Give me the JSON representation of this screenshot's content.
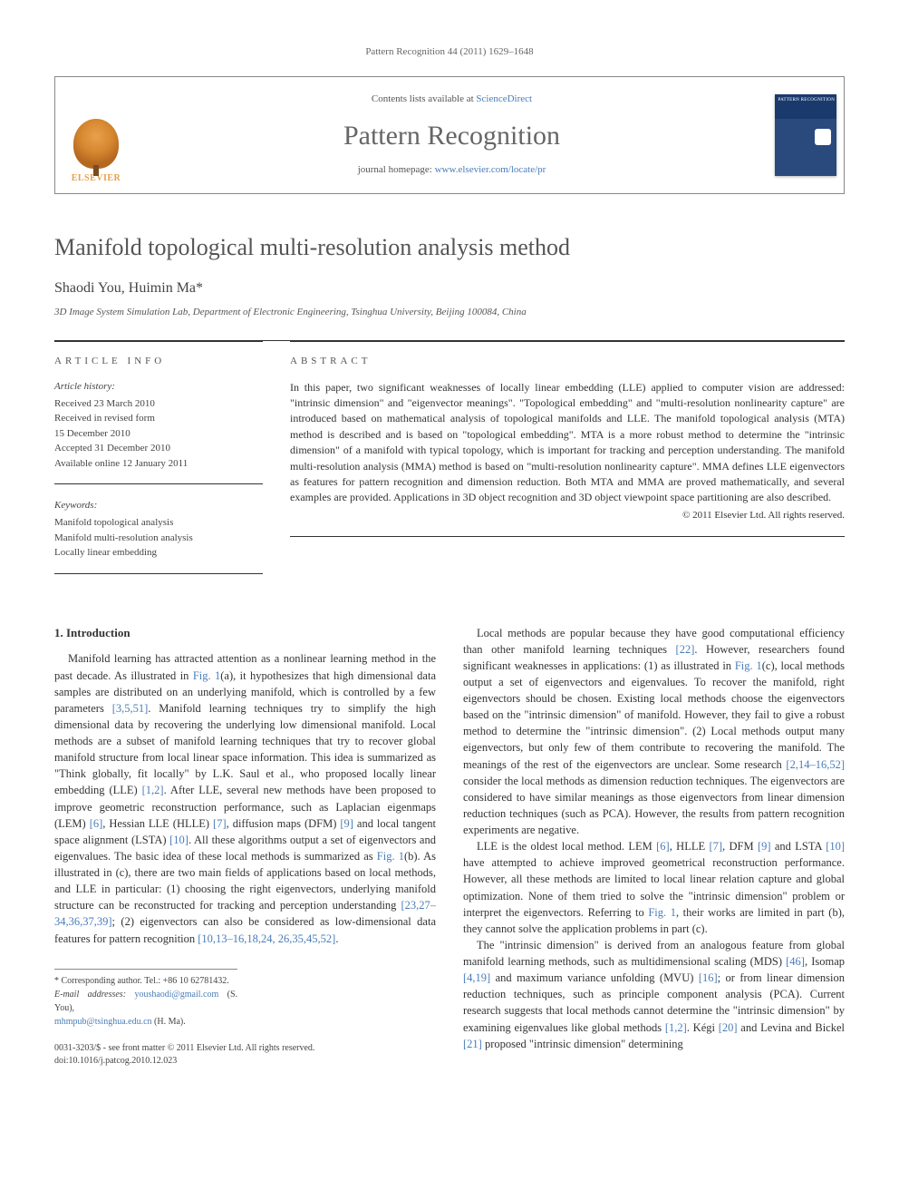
{
  "journal_ref": "Pattern Recognition 44 (2011) 1629–1648",
  "header": {
    "publisher": "ELSEVIER",
    "contents_prefix": "Contents lists available at ",
    "contents_link": "ScienceDirect",
    "journal_name": "Pattern Recognition",
    "homepage_prefix": "journal homepage: ",
    "homepage_url": "www.elsevier.com/locate/pr",
    "cover_label": "PATTERN RECOGNITION"
  },
  "article": {
    "title": "Manifold topological multi-resolution analysis method",
    "authors": "Shaodi You, Huimin Ma",
    "corresponding_marker": "*",
    "affiliation": "3D Image System Simulation Lab, Department of Electronic Engineering, Tsinghua University, Beijing 100084, China"
  },
  "info": {
    "section_label": "ARTICLE INFO",
    "history_heading": "Article history:",
    "history": {
      "received": "Received 23 March 2010",
      "revised1": "Received in revised form",
      "revised2": "15 December 2010",
      "accepted": "Accepted 31 December 2010",
      "online": "Available online 12 January 2011"
    },
    "keywords_heading": "Keywords:",
    "keywords": {
      "k1": "Manifold topological analysis",
      "k2": "Manifold multi-resolution analysis",
      "k3": "Locally linear embedding"
    }
  },
  "abstract": {
    "section_label": "ABSTRACT",
    "text": "In this paper, two significant weaknesses of locally linear embedding (LLE) applied to computer vision are addressed: \"intrinsic dimension\" and \"eigenvector meanings\". \"Topological embedding\" and \"multi-resolution nonlinearity capture\" are introduced based on mathematical analysis of topological manifolds and LLE. The manifold topological analysis (MTA) method is described and is based on \"topological embedding\". MTA is a more robust method to determine the \"intrinsic dimension\" of a manifold with typical topology, which is important for tracking and perception understanding. The manifold multi-resolution analysis (MMA) method is based on \"multi-resolution nonlinearity capture\". MMA defines LLE eigenvectors as features for pattern recognition and dimension reduction. Both MTA and MMA are proved mathematically, and several examples are provided. Applications in 3D object recognition and 3D object viewpoint space partitioning are also described.",
    "copyright": "© 2011 Elsevier Ltd. All rights reserved."
  },
  "body": {
    "heading1": "1. Introduction",
    "left_p1a": "Manifold learning has attracted attention as a nonlinear learning method in the past decade. As illustrated in ",
    "left_fig1a": "Fig. 1",
    "left_p1b": "(a), it hypothesizes that high dimensional data samples are distributed on an underlying manifold, which is controlled by a few parameters ",
    "left_ref1": "[3,5,51]",
    "left_p1c": ". Manifold learning techniques try to simplify the high dimensional data by recovering the underlying low dimensional manifold. Local methods are a subset of manifold learning techniques that try to recover global manifold structure from local linear space information. This idea is summarized as \"Think globally, fit locally\" by L.K. Saul et al., who proposed locally linear embedding (LLE) ",
    "left_ref2": "[1,2]",
    "left_p1d": ". After LLE, several new methods have been proposed to improve geometric reconstruction performance, such as Laplacian eigenmaps (LEM) ",
    "left_ref3": "[6]",
    "left_p1e": ", Hessian LLE (HLLE) ",
    "left_ref4": "[7]",
    "left_p1f": ", diffusion maps (DFM) ",
    "left_ref5": "[9]",
    "left_p1g": " and local tangent space alignment (LSTA) ",
    "left_ref6": "[10]",
    "left_p1h": ". All these algorithms output a set of eigenvectors and eigenvalues. The basic idea of these local methods is summarized as ",
    "left_fig1b": "Fig. 1",
    "left_p1i": "(b). As illustrated in ",
    "left_fig1c": "Fig. 1",
    "left_p1j": "(c), there are two main fields of applications based on local methods, and LLE in particular: (1) choosing the right eigenvectors, underlying manifold structure can be reconstructed for tracking and perception understanding ",
    "left_ref7": "[23,27–34,36,37,39]",
    "left_p1k": "; (2) eigenvectors can also be considered as low-dimensional data features for pattern recognition ",
    "left_ref8": "[10,13–16,18,24, 26,35,45,52]",
    "left_p1l": ".",
    "right_p1a": "Local methods are popular because they have good computational efficiency than other manifold learning techniques ",
    "right_ref1": "[22]",
    "right_p1b": ". However, researchers found significant weaknesses in applications: (1) as illustrated in ",
    "right_fig1": "Fig. 1",
    "right_p1c": "(c), local methods output a set of eigenvectors and eigenvalues. To recover the manifold, right eigenvectors should be chosen. Existing local methods choose the eigenvectors based on the \"intrinsic dimension\" of manifold. However, they fail to give a robust method to determine the \"intrinsic dimension\". (2) Local methods output many eigenvectors, but only few of them contribute to recovering the manifold. The meanings of the rest of the eigenvectors are unclear. Some research ",
    "right_ref2": "[2,14–16,52]",
    "right_p1d": " consider the local methods as dimension reduction techniques. The eigenvectors are considered to have similar meanings as those eigenvectors from linear dimension reduction techniques (such as PCA). However, the results from pattern recognition experiments are negative.",
    "right_p2a": "LLE is the oldest local method. LEM ",
    "right_ref3": "[6]",
    "right_p2b": ", HLLE ",
    "right_ref4": "[7]",
    "right_p2c": ", DFM ",
    "right_ref5": "[9]",
    "right_p2d": " and LSTA ",
    "right_ref6": "[10]",
    "right_p2e": " have attempted to achieve improved geometrical reconstruction performance. However, all these methods are limited to local linear relation capture and global optimization. None of them tried to solve the \"intrinsic dimension\" problem or interpret the eigenvectors. Referring to ",
    "right_fig2": "Fig. 1",
    "right_p2f": ", their works are limited in part (b), they cannot solve the application problems in part (c).",
    "right_p3a": "The \"intrinsic dimension\" is derived from an analogous feature from global manifold learning methods, such as multidimensional scaling (MDS) ",
    "right_ref7": "[46]",
    "right_p3b": ", Isomap ",
    "right_ref8": "[4,19]",
    "right_p3c": " and maximum variance unfolding (MVU) ",
    "right_ref9": "[16]",
    "right_p3d": "; or from linear dimension reduction techniques, such as principle component analysis (PCA). Current research suggests that local methods cannot determine the \"intrinsic dimension\" by examining eigenvalues like global methods ",
    "right_ref10": "[1,2]",
    "right_p3e": ". Kégi ",
    "right_ref11": "[20]",
    "right_p3f": " and Levina and Bickel ",
    "right_ref12": "[21]",
    "right_p3g": " proposed \"intrinsic dimension\" determining"
  },
  "footnotes": {
    "corr": "* Corresponding author. Tel.: +86 10 62781432.",
    "email_label": "E-mail addresses: ",
    "email1": "youshaodi@gmail.com",
    "email1_who": " (S. You),",
    "email2": "mhmpub@tsinghua.edu.cn",
    "email2_who": " (H. Ma)."
  },
  "doi": {
    "line1": "0031-3203/$ - see front matter © 2011 Elsevier Ltd. All rights reserved.",
    "line2": "doi:10.1016/j.patcog.2010.12.023"
  }
}
